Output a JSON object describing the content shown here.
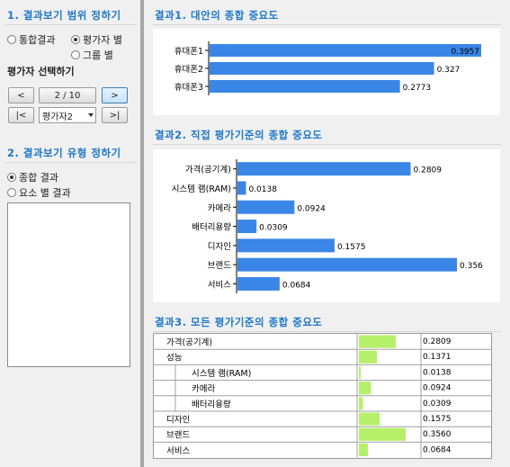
{
  "left": {
    "section1": {
      "title": "1. 결과보기 범위 정하기",
      "radios": [
        {
          "label": "통합결과",
          "checked": false
        },
        {
          "label": "평가자 별",
          "checked": true
        },
        {
          "label": "그룹 별",
          "checked": false
        }
      ]
    },
    "evaluator": {
      "title": "평가자 선택하기",
      "prev_label": "<",
      "page_label": "2 / 10",
      "next_label": ">",
      "first_label": "|<",
      "select_value": "평가자2",
      "last_label": ">|"
    },
    "section2": {
      "title": "2. 결과보기 유형 정하기",
      "radios": [
        {
          "label": "종합 결과",
          "checked": true
        },
        {
          "label": "요소 별 결과",
          "checked": false
        }
      ]
    }
  },
  "results": {
    "r1_title": "결과1. 대안의 종합 중요도",
    "r2_title": "결과2. 직접 평가기준의 종합 중요도",
    "r3_title": "결과3. 모든 평가기준의 종합 중요도"
  },
  "colors": {
    "accent": "#1e78c8",
    "bar": "#3a86e6",
    "table_bar": "#b6f06a"
  },
  "chart_data": [
    {
      "type": "bar",
      "orientation": "horizontal",
      "categories": [
        "휴대폰1",
        "휴대폰2",
        "휴대폰3"
      ],
      "values": [
        0.3957,
        0.327,
        0.2773
      ],
      "value_labels": [
        "0.3957",
        "0.327",
        "0.2773"
      ],
      "xlim": [
        0,
        0.3957
      ]
    },
    {
      "type": "bar",
      "orientation": "horizontal",
      "categories": [
        "가격(공기계)",
        "시스템 램(RAM)",
        "카메라",
        "배터리용량",
        "디자인",
        "브랜드",
        "서비스"
      ],
      "values": [
        0.2809,
        0.0138,
        0.0924,
        0.0309,
        0.1575,
        0.356,
        0.0684
      ],
      "value_labels": [
        "0.2809",
        "0.0138",
        "0.0924",
        "0.0309",
        "0.1575",
        "0.356",
        "0.0684"
      ],
      "xlim": [
        0,
        0.356
      ]
    },
    {
      "type": "table",
      "rows": [
        {
          "label": "가격(공기계)",
          "indent": 0,
          "value": 0.2809,
          "display": "0.2809"
        },
        {
          "label": "성능",
          "indent": 0,
          "value": 0.1371,
          "display": "0.1371"
        },
        {
          "label": "시스템 램(RAM)",
          "indent": 1,
          "value": 0.0138,
          "display": "0.0138"
        },
        {
          "label": "카메라",
          "indent": 1,
          "value": 0.0924,
          "display": "0.0924"
        },
        {
          "label": "배터리용량",
          "indent": 1,
          "value": 0.0309,
          "display": "0.0309"
        },
        {
          "label": "디자인",
          "indent": 0,
          "value": 0.1575,
          "display": "0.1575"
        },
        {
          "label": "브랜드",
          "indent": 0,
          "value": 0.356,
          "display": "0.3560"
        },
        {
          "label": "서비스",
          "indent": 0,
          "value": 0.0684,
          "display": "0.0684"
        }
      ],
      "max": 0.356
    }
  ]
}
